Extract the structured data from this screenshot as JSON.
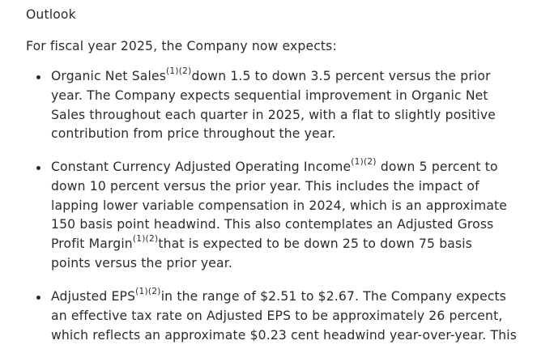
{
  "outlook": {
    "heading": "Outlook",
    "intro": "For fiscal year 2025, the Company now expects:",
    "bullets": [
      {
        "lines": [
          {
            "pre": "Organic Net Sales",
            "sup": "(1)(2)",
            "post": "down 1.5 to down 3.5 percent versus the prior"
          },
          {
            "pre": "year. The Company expects sequential improvement in Organic Net"
          },
          {
            "pre": "Sales throughout each quarter in 2025, with a flat to slightly positive"
          },
          {
            "pre": "contribution from price throughout the year."
          }
        ]
      },
      {
        "lines": [
          {
            "pre": "Constant Currency Adjusted Operating Income",
            "sup": "(1)(2)",
            "post": " down 5 percent to"
          },
          {
            "pre": "down 10 percent versus the prior year. This includes the impact of"
          },
          {
            "pre": "lapping lower variable compensation in 2024, which is an approximate"
          },
          {
            "pre": "150 basis point headwind. This also contemplates an Adjusted Gross"
          },
          {
            "pre": "Profit Margin",
            "sup": "(1)(2)",
            "post": "that is expected to be down 25 to down 75 basis"
          },
          {
            "pre": "points versus the prior year."
          }
        ]
      },
      {
        "lines": [
          {
            "pre": "Adjusted EPS",
            "sup": "(1)(2)",
            "post": "in the range of $2.51 to $2.67. The Company expects"
          },
          {
            "pre": "an effective tax rate on Adjusted EPS to be approximately 26 percent,"
          },
          {
            "pre": "which reflects an approximate $0.23 cent headwind year-over-year. This"
          }
        ]
      }
    ]
  }
}
